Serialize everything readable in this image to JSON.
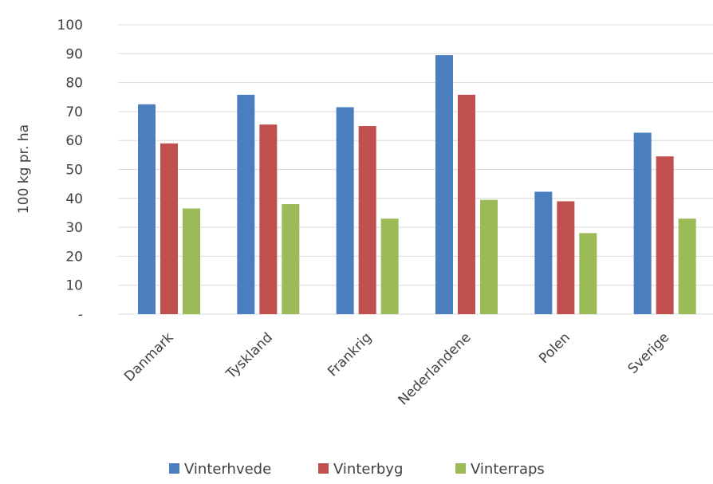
{
  "chart_data": {
    "type": "bar",
    "ylabel": "100 kg pr. ha",
    "ylim": [
      0,
      100
    ],
    "yticks": [
      {
        "value": 0,
        "label": "-"
      },
      {
        "value": 10,
        "label": "10"
      },
      {
        "value": 20,
        "label": "20"
      },
      {
        "value": 30,
        "label": "30"
      },
      {
        "value": 40,
        "label": "40"
      },
      {
        "value": 50,
        "label": "50"
      },
      {
        "value": 60,
        "label": "60"
      },
      {
        "value": 70,
        "label": "70"
      },
      {
        "value": 80,
        "label": "80"
      },
      {
        "value": 90,
        "label": "90"
      },
      {
        "value": 100,
        "label": "100"
      }
    ],
    "grid": true,
    "legend_position": "bottom",
    "categories": [
      "Danmark",
      "Tyskland",
      "Frankrig",
      "Nederlandene",
      "Polen",
      "Sverige"
    ],
    "series": [
      {
        "name": "Vinterhvede",
        "color": "#4a7ebf",
        "values": [
          72.5,
          75.8,
          71.5,
          89.5,
          42.3,
          62.7
        ]
      },
      {
        "name": "Vinterbyg",
        "color": "#c0504d",
        "values": [
          59,
          65.5,
          65,
          75.8,
          39,
          54.5
        ]
      },
      {
        "name": "Vinterraps",
        "color": "#9bbb59",
        "values": [
          36.5,
          38,
          33,
          39.5,
          28,
          33
        ]
      }
    ]
  }
}
